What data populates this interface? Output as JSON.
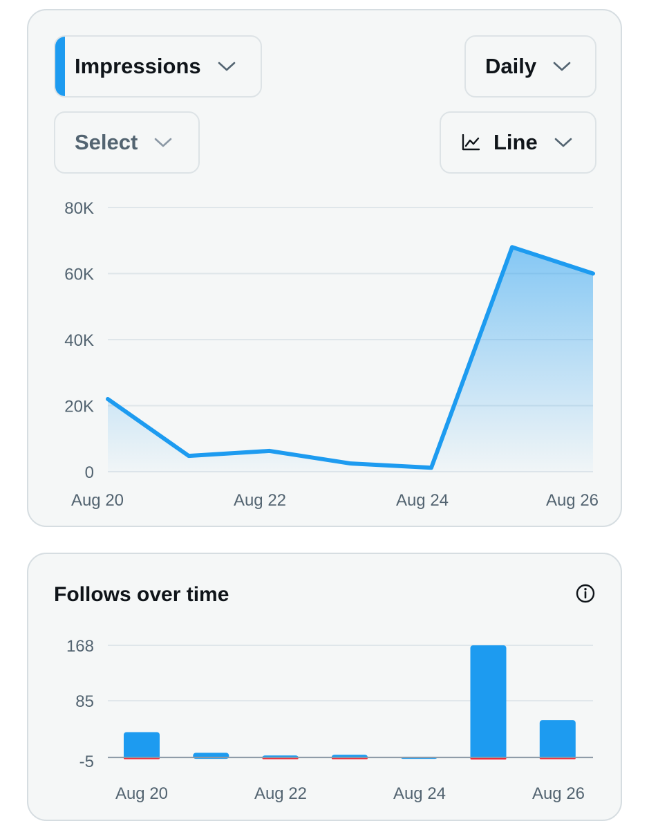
{
  "impressions": {
    "metric_label": "Impressions",
    "period_label": "Daily",
    "compare_label": "Select",
    "chart_type_label": "Line",
    "icons": {
      "chevron": "chevron-down-icon",
      "chart_type": "line-chart-icon"
    },
    "colors": {
      "accent": "#1d9bf0",
      "grid": "#dfe6ea",
      "axis_text": "#536471"
    }
  },
  "follows": {
    "title": "Follows over time",
    "info_icon": "info-icon",
    "colors": {
      "gain": "#1d9bf0",
      "loss": "#f4212e",
      "baseline": "#8b98a5"
    }
  },
  "chart_data": [
    {
      "type": "area",
      "x": [
        "Aug 20",
        "Aug 21",
        "Aug 22",
        "Aug 23",
        "Aug 24",
        "Aug 25",
        "Aug 26"
      ],
      "x_tick_labels": [
        "Aug 20",
        "Aug 22",
        "Aug 24",
        "Aug 26"
      ],
      "series": [
        {
          "values": [
            22000,
            4800,
            6300,
            2500,
            1200,
            68000,
            60000
          ]
        }
      ],
      "y_ticks": [
        "0",
        "20K",
        "40K",
        "60K",
        "80K"
      ],
      "ylim": [
        0,
        80000
      ],
      "grid": true
    },
    {
      "type": "bar",
      "x": [
        "Aug 20",
        "Aug 21",
        "Aug 22",
        "Aug 23",
        "Aug 24",
        "Aug 25",
        "Aug 26"
      ],
      "x_tick_labels": [
        "Aug 20",
        "Aug 22",
        "Aug 24",
        "Aug 26"
      ],
      "series": [
        {
          "values": [
            38,
            7,
            3,
            4,
            1,
            168,
            56
          ]
        },
        {
          "values": [
            -1,
            0,
            -1,
            -1,
            0,
            -3,
            -2
          ]
        }
      ],
      "y_ticks": [
        "-5",
        "85",
        "168"
      ],
      "ylim": [
        -5,
        168
      ],
      "grid": true
    }
  ]
}
